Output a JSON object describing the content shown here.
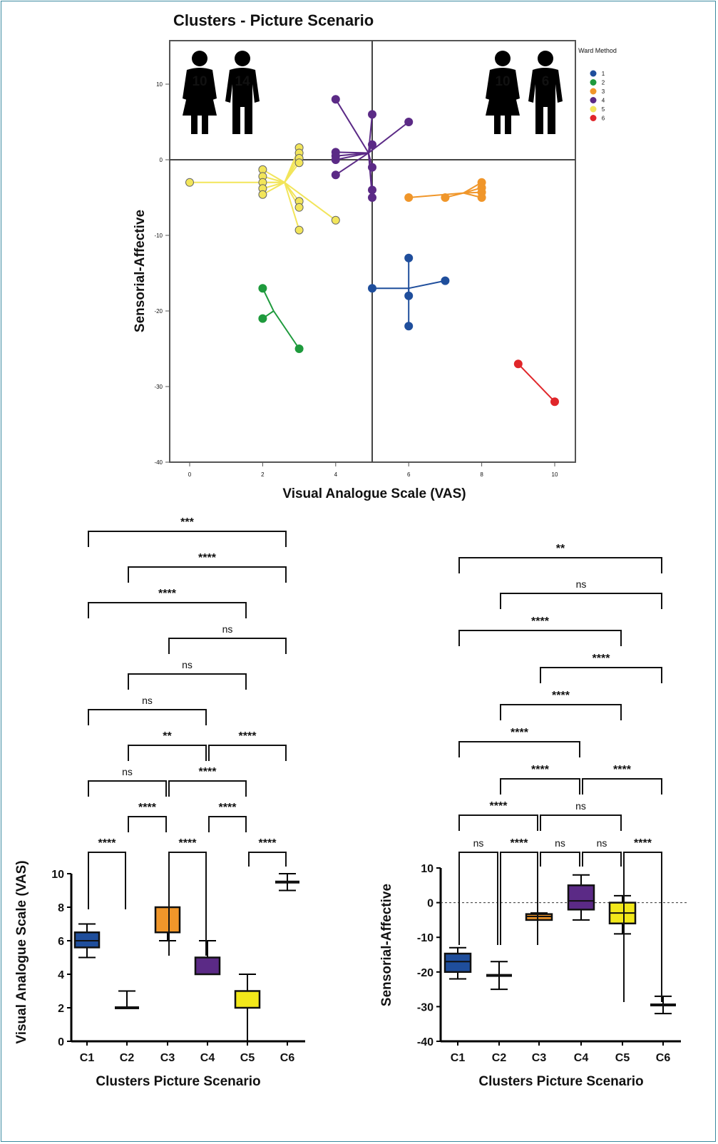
{
  "chart_data": [
    {
      "type": "scatter",
      "title": "Clusters - Picture Scenario",
      "xlabel": "Visual Analogue Scale (VAS)",
      "ylabel": "Sensorial-Affective",
      "xlim": [
        -0.55,
        10.55
      ],
      "ylim": [
        -40,
        15.7
      ],
      "xticks": [
        "0",
        "2",
        "4",
        "6",
        "8",
        "10"
      ],
      "yticks": [
        "10",
        "0",
        "-10",
        "-20",
        "-30",
        "-40"
      ],
      "reference_lines": {
        "x": 5,
        "y": 0
      },
      "legend": {
        "title": "Ward Method",
        "position": "right"
      },
      "icons": [
        {
          "type": "female-icon",
          "count": "10",
          "quadrant": "top-left"
        },
        {
          "type": "male-icon",
          "count": "14",
          "quadrant": "top-left"
        },
        {
          "type": "female-icon",
          "count": "10",
          "quadrant": "top-right"
        },
        {
          "type": "male-icon",
          "count": "6",
          "quadrant": "top-right"
        }
      ],
      "series": [
        {
          "name": "1",
          "color": "#1f4e9c",
          "centroid": [
            6,
            -17
          ],
          "points": [
            [
              5,
              -17
            ],
            [
              6,
              -13
            ],
            [
              6,
              -18
            ],
            [
              6,
              -22
            ],
            [
              7,
              -16
            ]
          ]
        },
        {
          "name": "2",
          "color": "#1e9a3c",
          "centroid": [
            2.3,
            -20
          ],
          "points": [
            [
              2,
              -17
            ],
            [
              2,
              -21
            ],
            [
              3,
              -25
            ]
          ]
        },
        {
          "name": "3",
          "color": "#f0962a",
          "centroid": [
            7.5,
            -4.4
          ],
          "points": [
            [
              6,
              -5
            ],
            [
              7,
              -5
            ],
            [
              8,
              -3
            ],
            [
              8,
              -3.7
            ],
            [
              8,
              -4.3
            ],
            [
              8,
              -5
            ]
          ]
        },
        {
          "name": "4",
          "color": "#5b2a86",
          "centroid": [
            4.9,
            0.9
          ],
          "points": [
            [
              4,
              8
            ],
            [
              4,
              1
            ],
            [
              4,
              0.5
            ],
            [
              4,
              0
            ],
            [
              4,
              -2
            ],
            [
              5,
              6
            ],
            [
              5,
              2
            ],
            [
              5,
              -1
            ],
            [
              5,
              -4
            ],
            [
              5,
              -5
            ],
            [
              6,
              5
            ]
          ]
        },
        {
          "name": "5",
          "color": "#f2e55a",
          "centroid": [
            2.6,
            -3
          ],
          "points": [
            [
              0,
              -3
            ],
            [
              2,
              -1.3
            ],
            [
              2,
              -2.2
            ],
            [
              2,
              -3
            ],
            [
              2,
              -3.8
            ],
            [
              2,
              -4.6
            ],
            [
              3,
              1.6
            ],
            [
              3,
              0.9
            ],
            [
              3,
              0.2
            ],
            [
              3,
              -0.4
            ],
            [
              3,
              -5.5
            ],
            [
              3,
              -6.3
            ],
            [
              3,
              -9.3
            ],
            [
              4,
              -8
            ]
          ]
        },
        {
          "name": "6",
          "color": "#e0262a",
          "centroid": [
            9.5,
            -29.5
          ],
          "points": [
            [
              9,
              -27
            ],
            [
              10,
              -32
            ]
          ]
        }
      ]
    },
    {
      "type": "box",
      "xlabel": "Clusters Picture Scenario",
      "ylabel": "Visual Analogue Scale (VAS)",
      "ylim": [
        0,
        10
      ],
      "yticks": [
        "0",
        "2",
        "4",
        "6",
        "8",
        "10"
      ],
      "categories": [
        "C1",
        "C2",
        "C3",
        "C4",
        "C5",
        "C6"
      ],
      "colors": [
        "#1f4e9c",
        "#ffffff",
        "#f0962a",
        "#5b2a86",
        "#f2e81a",
        "#ffffff"
      ],
      "boxes": [
        {
          "min": 5,
          "q1": 5.6,
          "median": 6,
          "q3": 6.5,
          "max": 7
        },
        {
          "min": 2,
          "q1": 2,
          "median": 2,
          "q3": 2,
          "max": 3
        },
        {
          "min": 6,
          "q1": 6.5,
          "median": 8,
          "q3": 8,
          "max": 8
        },
        {
          "min": 4,
          "q1": 4,
          "median": 4,
          "q3": 5,
          "max": 6
        },
        {
          "min": 0,
          "q1": 2,
          "median": 2,
          "q3": 3,
          "max": 4
        },
        {
          "min": 9,
          "q1": 9.5,
          "median": 9.5,
          "q3": 9.5,
          "max": 10
        }
      ],
      "comparisons": [
        {
          "a": "C1",
          "b": "C6",
          "label": "***"
        },
        {
          "a": "C2",
          "b": "C6",
          "label": "****"
        },
        {
          "a": "C1",
          "b": "C5",
          "label": "****"
        },
        {
          "a": "C3",
          "b": "C6",
          "label": "ns"
        },
        {
          "a": "C2",
          "b": "C5",
          "label": "ns"
        },
        {
          "a": "C1",
          "b": "C4",
          "label": "ns"
        },
        {
          "a": "C2",
          "b": "C4",
          "label": "**"
        },
        {
          "a": "C4",
          "b": "C6",
          "label": "****"
        },
        {
          "a": "C1",
          "b": "C3",
          "label": "ns"
        },
        {
          "a": "C3",
          "b": "C5",
          "label": "****"
        },
        {
          "a": "C2",
          "b": "C3",
          "label": "****"
        },
        {
          "a": "C4",
          "b": "C5",
          "label": "****"
        },
        {
          "a": "C1",
          "b": "C2",
          "label": "****"
        },
        {
          "a": "C3",
          "b": "C4",
          "label": "****"
        },
        {
          "a": "C5",
          "b": "C6",
          "label": "****"
        }
      ]
    },
    {
      "type": "box",
      "xlabel": "Clusters Picture Scenario",
      "ylabel": "Sensorial-Affective",
      "ylim": [
        -40,
        10
      ],
      "yticks": [
        "-40",
        "-30",
        "-20",
        "-10",
        "0",
        "10"
      ],
      "reference_lines": {
        "y": 0
      },
      "categories": [
        "C1",
        "C2",
        "C3",
        "C4",
        "C5",
        "C6"
      ],
      "colors": [
        "#1f4e9c",
        "#ffffff",
        "#f0962a",
        "#5b2a86",
        "#f2e81a",
        "#ffffff"
      ],
      "boxes": [
        {
          "min": -22,
          "q1": -20,
          "median": -17,
          "q3": -14.7,
          "max": -13
        },
        {
          "min": -25,
          "q1": -21,
          "median": -21,
          "q3": -21,
          "max": -17
        },
        {
          "min": -5,
          "q1": -5,
          "median": -4,
          "q3": -3.3,
          "max": -3
        },
        {
          "min": -5,
          "q1": -2,
          "median": 0.5,
          "q3": 5,
          "max": 8
        },
        {
          "min": -9,
          "q1": -6,
          "median": -3,
          "q3": 0,
          "max": 2
        },
        {
          "min": -32,
          "q1": -29.5,
          "median": -29.5,
          "q3": -29.5,
          "max": -27
        }
      ],
      "comparisons": [
        {
          "a": "C1",
          "b": "C6",
          "label": "**"
        },
        {
          "a": "C2",
          "b": "C6",
          "label": "ns"
        },
        {
          "a": "C1",
          "b": "C5",
          "label": "****"
        },
        {
          "a": "C3",
          "b": "C6",
          "label": "****"
        },
        {
          "a": "C2",
          "b": "C5",
          "label": "****"
        },
        {
          "a": "C1",
          "b": "C4",
          "label": "****"
        },
        {
          "a": "C2",
          "b": "C4",
          "label": "****"
        },
        {
          "a": "C4",
          "b": "C6",
          "label": "****"
        },
        {
          "a": "C1",
          "b": "C3",
          "label": "****"
        },
        {
          "a": "C3",
          "b": "C5",
          "label": "ns"
        },
        {
          "a": "C1",
          "b": "C2",
          "label": "ns"
        },
        {
          "a": "C2",
          "b": "C3",
          "label": "****"
        },
        {
          "a": "C3",
          "b": "C4",
          "label": "ns"
        },
        {
          "a": "C4",
          "b": "C5",
          "label": "ns"
        },
        {
          "a": "C5",
          "b": "C6",
          "label": "****"
        }
      ]
    }
  ]
}
